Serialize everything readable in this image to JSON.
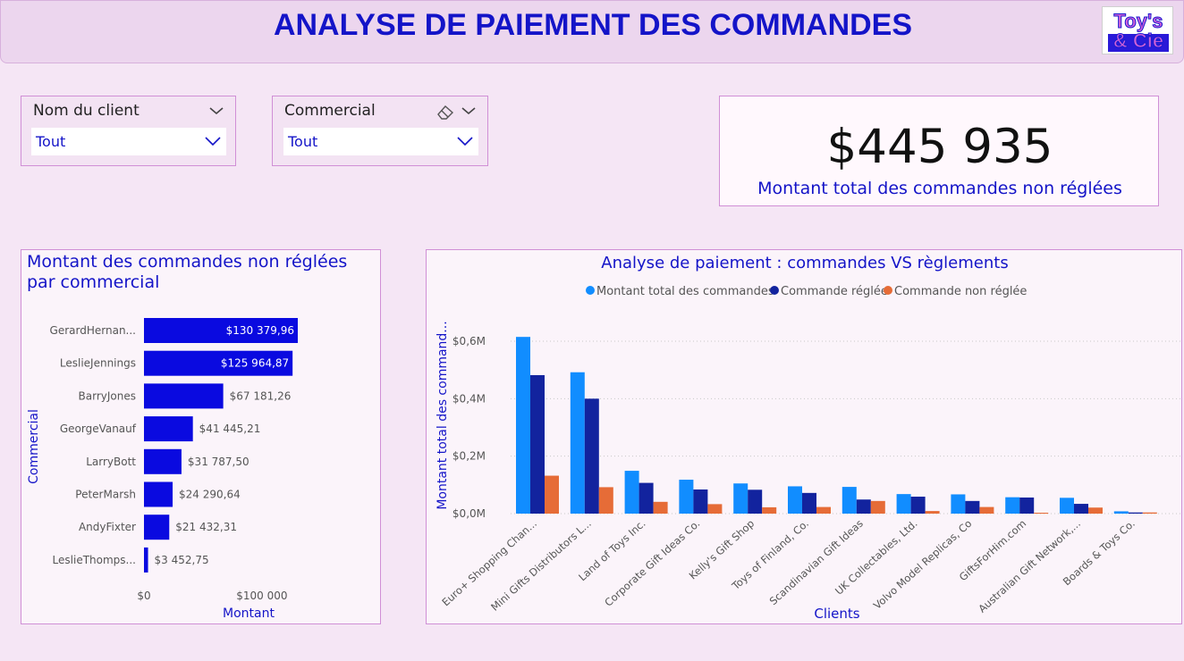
{
  "header": {
    "title": "ANALYSE DE PAIEMENT DES COMMANDES",
    "logo_line1": "Toy's",
    "logo_line2": "& Cie"
  },
  "slicers": {
    "client": {
      "label": "Nom du client",
      "value": "Tout"
    },
    "commercial": {
      "label": "Commercial",
      "value": "Tout"
    }
  },
  "kpi": {
    "value": "$445 935",
    "label": "Montant total des commandes non réglées"
  },
  "colors": {
    "primary": "#1414c8",
    "series1": "#118dff",
    "series2": "#12239e",
    "series3": "#e66c37",
    "bars": "#0a0ae0"
  },
  "chart_data": [
    {
      "type": "bar",
      "orientation": "horizontal",
      "title": "Montant des commandes non réglées par commercial",
      "xlabel": "Montant",
      "ylabel": "Commercial",
      "categories": [
        "GerardHernan...",
        "LeslieJennings",
        "BarryJones",
        "GeorgeVanauf",
        "LarryBott",
        "PeterMarsh",
        "AndyFixter",
        "LeslieThomps..."
      ],
      "values": [
        130379.96,
        125964.87,
        67181.26,
        41445.21,
        31787.5,
        24290.64,
        21432.31,
        3452.75
      ],
      "data_labels": [
        "$130 379,96",
        "$125 964,87",
        "$67 181,26",
        "$41 445,21",
        "$31 787,50",
        "$24 290,64",
        "$21 432,31",
        "$3 452,75"
      ],
      "x_ticks": [
        "$0",
        "$100 000"
      ],
      "xlim": [
        0,
        130379.96
      ]
    },
    {
      "type": "bar",
      "title": "Analyse de paiement : commandes VS règlements",
      "xlabel": "Clients",
      "ylabel": "Montant total des command...",
      "categories": [
        "Euro+ Shopping Chan...",
        "Mini Gifts Distributors L...",
        "Land of Toys Inc.",
        "Corporate Gift Ideas Co.",
        "Kelly's Gift Shop",
        "Toys of Finland, Co.",
        "Scandinavian Gift Ideas",
        "UK Collectables, Ltd.",
        "Volvo Model Replicas, Co",
        "GiftsForHim.com",
        "Australian Gift Network,...",
        "Boards & Toys Co."
      ],
      "series": [
        {
          "name": "Montant total des commandes",
          "values": [
            0.615,
            0.492,
            0.149,
            0.118,
            0.105,
            0.095,
            0.093,
            0.068,
            0.067,
            0.057,
            0.055,
            0.008
          ]
        },
        {
          "name": "Commande réglée",
          "values": [
            0.482,
            0.4,
            0.107,
            0.084,
            0.083,
            0.072,
            0.049,
            0.059,
            0.044,
            0.056,
            0.034,
            0.004
          ]
        },
        {
          "name": "Commande non réglée",
          "values": [
            0.132,
            0.092,
            0.041,
            0.033,
            0.022,
            0.023,
            0.044,
            0.009,
            0.023,
            0.002,
            0.021,
            0.004
          ]
        }
      ],
      "unit": "M",
      "y_ticks": [
        "$0,0M",
        "$0,2M",
        "$0,4M",
        "$0,6M"
      ],
      "ylim": [
        0,
        0.6
      ],
      "legend": "top",
      "grid": true
    }
  ]
}
